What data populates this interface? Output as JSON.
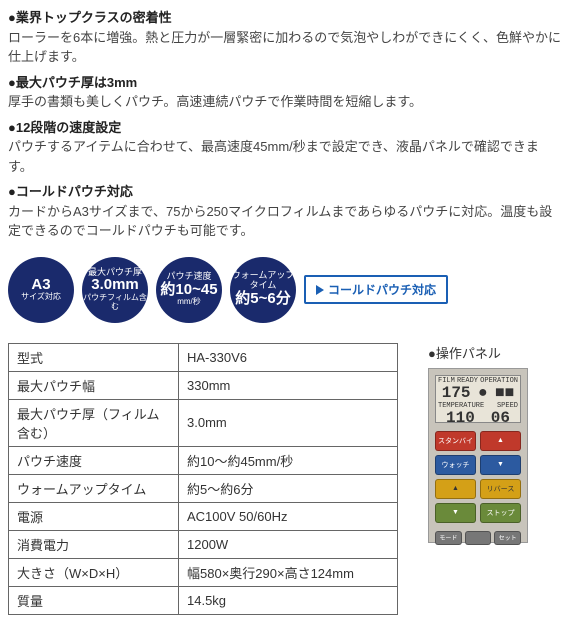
{
  "features": [
    {
      "title": "●業界トップクラスの密着性",
      "desc": "ローラーを6本に増強。熱と圧力が一層緊密に加わるので気泡やしわができにくく、色鮮やかに仕上げます。"
    },
    {
      "title": "●最大パウチ厚は3mm",
      "desc": "厚手の書類も美しくパウチ。高速連続パウチで作業時間を短縮します。"
    },
    {
      "title": "●12段階の速度設定",
      "desc": "パウチするアイテムに合わせて、最高速度45mm/秒まで設定でき、液晶パネルで確認できます。"
    },
    {
      "title": "●コールドパウチ対応",
      "desc": "カードからA3サイズまで、75から250マイクロフィルムまであらゆるパウチに対応。温度も設定できるのでコールドパウチも可能です。"
    }
  ],
  "badges": {
    "b1": {
      "l1": "",
      "l2": "A3",
      "l3": "サイズ対応"
    },
    "b2": {
      "l1": "最大パウチ厚",
      "l2": "3.0mm",
      "l3": "パウチフィルム含む"
    },
    "b3": {
      "l1": "パウチ速度",
      "l2": "約10~45",
      "l3": "mm/秒"
    },
    "b4": {
      "l1": "ウォームアップタイム",
      "l2": "約5~6分",
      "l3": ""
    },
    "cold": "コールドパウチ対応"
  },
  "specs": {
    "rows": [
      {
        "label": "型式",
        "value": "HA-330V6"
      },
      {
        "label": "最大パウチ幅",
        "value": "330mm"
      },
      {
        "label": "最大パウチ厚（フィルム含む）",
        "value": "3.0mm"
      },
      {
        "label": "パウチ速度",
        "value": "約10～約45mm/秒"
      },
      {
        "label": "ウォームアップタイム",
        "value": "約5～約6分"
      },
      {
        "label": "電源",
        "value": "AC100V 50/60Hz"
      },
      {
        "label": "消費電力",
        "value": "1200W"
      },
      {
        "label": "大きさ（W×D×H）",
        "value": "幅580×奥行290×高さ124mm"
      },
      {
        "label": "質量",
        "value": "14.5kg"
      }
    ]
  },
  "panel": {
    "label": "●操作パネル",
    "lcd": {
      "row1": [
        "FILM",
        "READY",
        "OPERATION"
      ],
      "row2": [
        "175",
        "●",
        "■■"
      ],
      "row3": [
        "TEMPERATURE",
        "SPEED"
      ],
      "row4": [
        "110",
        "06"
      ]
    },
    "buttons": {
      "b1": "スタンバイ",
      "b2": "▲",
      "b3": "ウォッチ",
      "b4": "▼",
      "b5": "▲",
      "b6": "リバース",
      "b7": "▼",
      "b8": "ストップ",
      "bot1": "モード",
      "bot2": "",
      "bot3": "セット"
    }
  },
  "colors": {
    "navy": "#1a2a6c",
    "blue_border": "#1a5fb4",
    "table_border": "#666666"
  }
}
